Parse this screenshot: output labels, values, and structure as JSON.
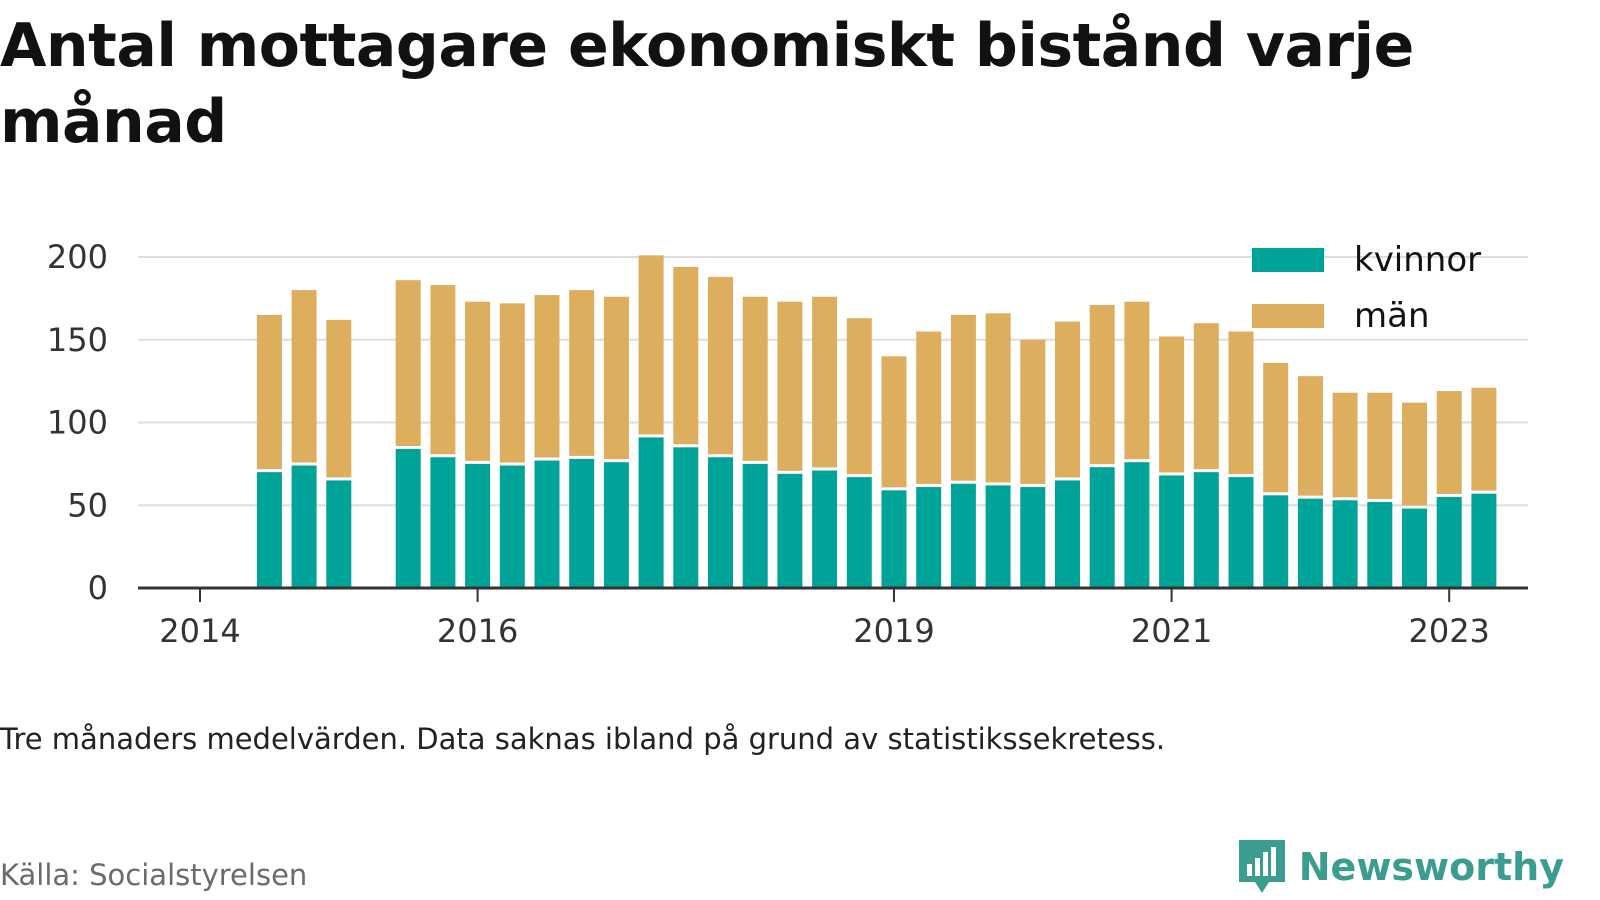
{
  "title": "Antal mottagare ekonomiskt bistånd varje månad",
  "note": "Tre månaders medelvärden. Data saknas ibland på grund av statistikssekretess.",
  "source": "Källa: Socialstyrelsen",
  "brand": {
    "name": "Newsworthy",
    "icon": "bar-chart-speech-bubble-icon",
    "color": "#3a9d8f"
  },
  "colors": {
    "kvinnor": "#00a398",
    "man": "#dcae5d",
    "grid": "#dddddd",
    "axis": "#333333"
  },
  "chart_data": {
    "type": "bar",
    "stacked": true,
    "ylim": [
      0,
      200
    ],
    "yticks": [
      0,
      50,
      100,
      150,
      200
    ],
    "xticks": [
      "2014",
      "2016",
      "2019",
      "2021",
      "2023"
    ],
    "legend_position": "top-right",
    "grid": true,
    "series": [
      {
        "name": "kvinnor",
        "values": [
          null,
          null,
          70,
          74,
          65,
          null,
          84,
          79,
          75,
          74,
          77,
          78,
          76,
          91,
          85,
          79,
          75,
          69,
          71,
          67,
          59,
          61,
          63,
          62,
          61,
          65,
          73,
          76,
          68,
          70,
          67,
          56,
          54,
          53,
          52,
          48,
          55,
          57
        ]
      },
      {
        "name": "män",
        "values": [
          null,
          null,
          95,
          106,
          97,
          null,
          102,
          104,
          98,
          98,
          100,
          102,
          100,
          110,
          109,
          109,
          101,
          104,
          105,
          96,
          81,
          94,
          102,
          104,
          89,
          96,
          98,
          97,
          84,
          90,
          88,
          80,
          74,
          65,
          66,
          64,
          64,
          64
        ]
      }
    ]
  }
}
